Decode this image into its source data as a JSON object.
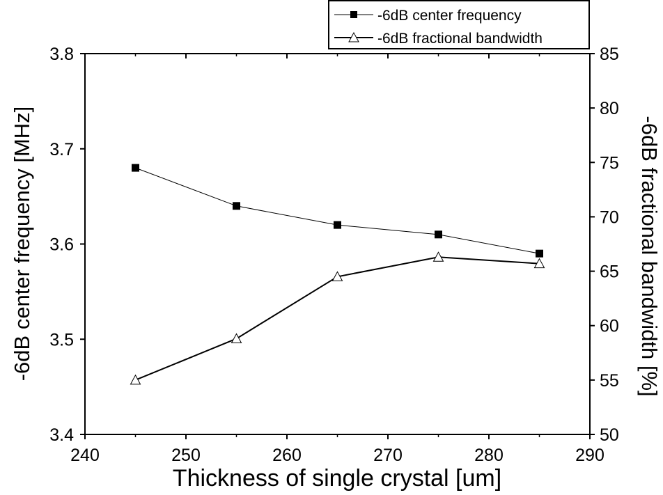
{
  "chart_data": {
    "type": "line",
    "xlabel": "Thickness of single crystal [um]",
    "ylabel_left": "-6dB center frequency [MHz]",
    "ylabel_right": "-6dB fractional bandwidth [%]",
    "xlim": [
      240,
      290
    ],
    "ylim_left": [
      3.4,
      3.8
    ],
    "ylim_right": [
      50,
      85
    ],
    "x_ticks": [
      "240",
      "250",
      "260",
      "270",
      "280",
      "290"
    ],
    "y_left_ticks": [
      "3.4",
      "3.5",
      "3.6",
      "3.7",
      "3.8"
    ],
    "y_right_ticks": [
      "50",
      "55",
      "60",
      "65",
      "70",
      "75",
      "80",
      "85"
    ],
    "grid": false,
    "legend_position": "top-right",
    "x": [
      245,
      255,
      265,
      275,
      285
    ],
    "series": [
      {
        "name": "-6dB center frequency",
        "axis": "left",
        "marker": "filled-square",
        "color": "#000000",
        "values": [
          3.68,
          3.64,
          3.62,
          3.61,
          3.59
        ]
      },
      {
        "name": "-6dB fractional bandwidth",
        "axis": "right",
        "marker": "open-triangle",
        "color": "#000000",
        "values": [
          55.0,
          58.8,
          64.5,
          66.3,
          65.7
        ]
      }
    ]
  }
}
